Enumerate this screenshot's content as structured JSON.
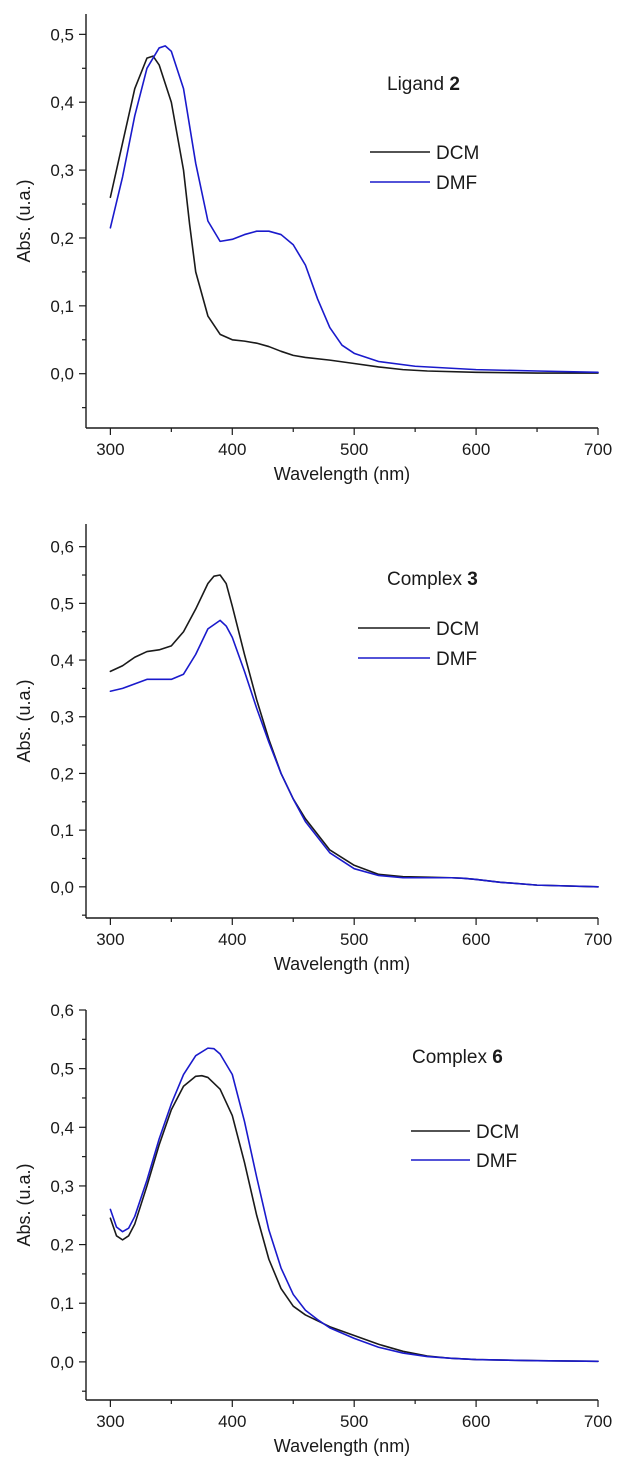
{
  "chart_data": [
    {
      "type": "line",
      "title": "Ligand",
      "title_bold": "2",
      "xlabel": "Wavelength (nm)",
      "ylabel": "Abs. (u.a.)",
      "xlim": [
        280,
        700
      ],
      "ylim": [
        -0.08,
        0.53
      ],
      "xticks": [
        "300",
        "400",
        "500",
        "600",
        "700"
      ],
      "yticks": [
        "0,0",
        "0,1",
        "0,2",
        "0,3",
        "0,4",
        "0,5"
      ],
      "legend_position": "top-right",
      "series": [
        {
          "name": "DCM",
          "color": "#1a1a1a",
          "x": [
            300,
            310,
            320,
            330,
            335,
            340,
            350,
            360,
            365,
            370,
            380,
            390,
            400,
            410,
            420,
            430,
            440,
            450,
            460,
            480,
            500,
            520,
            540,
            560,
            600,
            650,
            700
          ],
          "y": [
            0.26,
            0.34,
            0.42,
            0.465,
            0.468,
            0.455,
            0.4,
            0.3,
            0.22,
            0.15,
            0.085,
            0.058,
            0.05,
            0.048,
            0.045,
            0.04,
            0.033,
            0.027,
            0.024,
            0.02,
            0.015,
            0.01,
            0.006,
            0.004,
            0.002,
            0.001,
            0.001
          ]
        },
        {
          "name": "DMF",
          "color": "#1a1acc",
          "x": [
            300,
            310,
            320,
            330,
            340,
            345,
            350,
            360,
            370,
            380,
            390,
            400,
            410,
            420,
            430,
            440,
            450,
            460,
            470,
            480,
            490,
            500,
            520,
            550,
            600,
            650,
            700
          ],
          "y": [
            0.215,
            0.29,
            0.38,
            0.45,
            0.48,
            0.483,
            0.475,
            0.42,
            0.31,
            0.225,
            0.195,
            0.198,
            0.205,
            0.21,
            0.21,
            0.205,
            0.19,
            0.16,
            0.11,
            0.068,
            0.042,
            0.03,
            0.018,
            0.011,
            0.006,
            0.004,
            0.002
          ]
        }
      ]
    },
    {
      "type": "line",
      "title": "Complex",
      "title_bold": "3",
      "xlabel": "Wavelength (nm)",
      "ylabel": "Abs. (u.a.)",
      "xlim": [
        280,
        700
      ],
      "ylim": [
        -0.055,
        0.64
      ],
      "xticks": [
        "300",
        "400",
        "500",
        "600",
        "700"
      ],
      "yticks": [
        "0,0",
        "0,1",
        "0,2",
        "0,3",
        "0,4",
        "0,5",
        "0,6"
      ],
      "legend_position": "top-right",
      "series": [
        {
          "name": "DCM",
          "color": "#1a1a1a",
          "x": [
            300,
            310,
            320,
            330,
            340,
            350,
            360,
            370,
            380,
            385,
            390,
            395,
            400,
            410,
            420,
            430,
            440,
            450,
            460,
            480,
            500,
            520,
            540,
            560,
            580,
            590,
            600,
            620,
            650,
            700
          ],
          "y": [
            0.38,
            0.39,
            0.405,
            0.415,
            0.418,
            0.425,
            0.45,
            0.49,
            0.535,
            0.548,
            0.55,
            0.535,
            0.495,
            0.41,
            0.33,
            0.26,
            0.2,
            0.155,
            0.12,
            0.065,
            0.038,
            0.022,
            0.018,
            0.017,
            0.016,
            0.015,
            0.013,
            0.008,
            0.003,
            0.0
          ]
        },
        {
          "name": "DMF",
          "color": "#1a1acc",
          "x": [
            300,
            310,
            320,
            330,
            340,
            350,
            360,
            370,
            380,
            390,
            395,
            400,
            410,
            420,
            430,
            440,
            450,
            460,
            480,
            500,
            520,
            540,
            560,
            580,
            590,
            600,
            620,
            650,
            700
          ],
          "y": [
            0.345,
            0.35,
            0.358,
            0.366,
            0.366,
            0.366,
            0.375,
            0.41,
            0.455,
            0.47,
            0.46,
            0.44,
            0.38,
            0.315,
            0.255,
            0.2,
            0.155,
            0.115,
            0.06,
            0.032,
            0.02,
            0.016,
            0.016,
            0.016,
            0.015,
            0.013,
            0.008,
            0.003,
            0.0
          ]
        }
      ]
    },
    {
      "type": "line",
      "title": "Complex",
      "title_bold": "6",
      "xlabel": "Wavelength (nm)",
      "ylabel": "Abs. (u.a.)",
      "xlim": [
        280,
        700
      ],
      "ylim": [
        -0.065,
        0.6
      ],
      "xticks": [
        "300",
        "400",
        "500",
        "600",
        "700"
      ],
      "yticks": [
        "0,0",
        "0,1",
        "0,2",
        "0,3",
        "0,4",
        "0,5",
        "0,6"
      ],
      "legend_position": "right",
      "series": [
        {
          "name": "DCM",
          "color": "#1a1a1a",
          "x": [
            300,
            305,
            310,
            315,
            320,
            330,
            340,
            350,
            360,
            370,
            375,
            380,
            390,
            400,
            410,
            420,
            430,
            440,
            450,
            460,
            470,
            480,
            500,
            520,
            540,
            560,
            580,
            600,
            650,
            700
          ],
          "y": [
            0.245,
            0.215,
            0.208,
            0.215,
            0.235,
            0.3,
            0.37,
            0.43,
            0.47,
            0.487,
            0.488,
            0.485,
            0.465,
            0.42,
            0.34,
            0.25,
            0.175,
            0.125,
            0.095,
            0.08,
            0.07,
            0.06,
            0.045,
            0.03,
            0.018,
            0.01,
            0.006,
            0.004,
            0.002,
            0.001
          ]
        },
        {
          "name": "DMF",
          "color": "#1a1acc",
          "x": [
            300,
            305,
            310,
            315,
            320,
            330,
            340,
            350,
            360,
            370,
            380,
            385,
            390,
            400,
            410,
            420,
            430,
            440,
            450,
            460,
            470,
            480,
            500,
            520,
            540,
            560,
            580,
            600,
            650,
            700
          ],
          "y": [
            0.26,
            0.23,
            0.222,
            0.228,
            0.248,
            0.31,
            0.38,
            0.44,
            0.49,
            0.522,
            0.535,
            0.534,
            0.525,
            0.49,
            0.41,
            0.315,
            0.225,
            0.16,
            0.115,
            0.088,
            0.072,
            0.058,
            0.04,
            0.025,
            0.015,
            0.009,
            0.006,
            0.004,
            0.002,
            0.001
          ]
        }
      ]
    }
  ]
}
